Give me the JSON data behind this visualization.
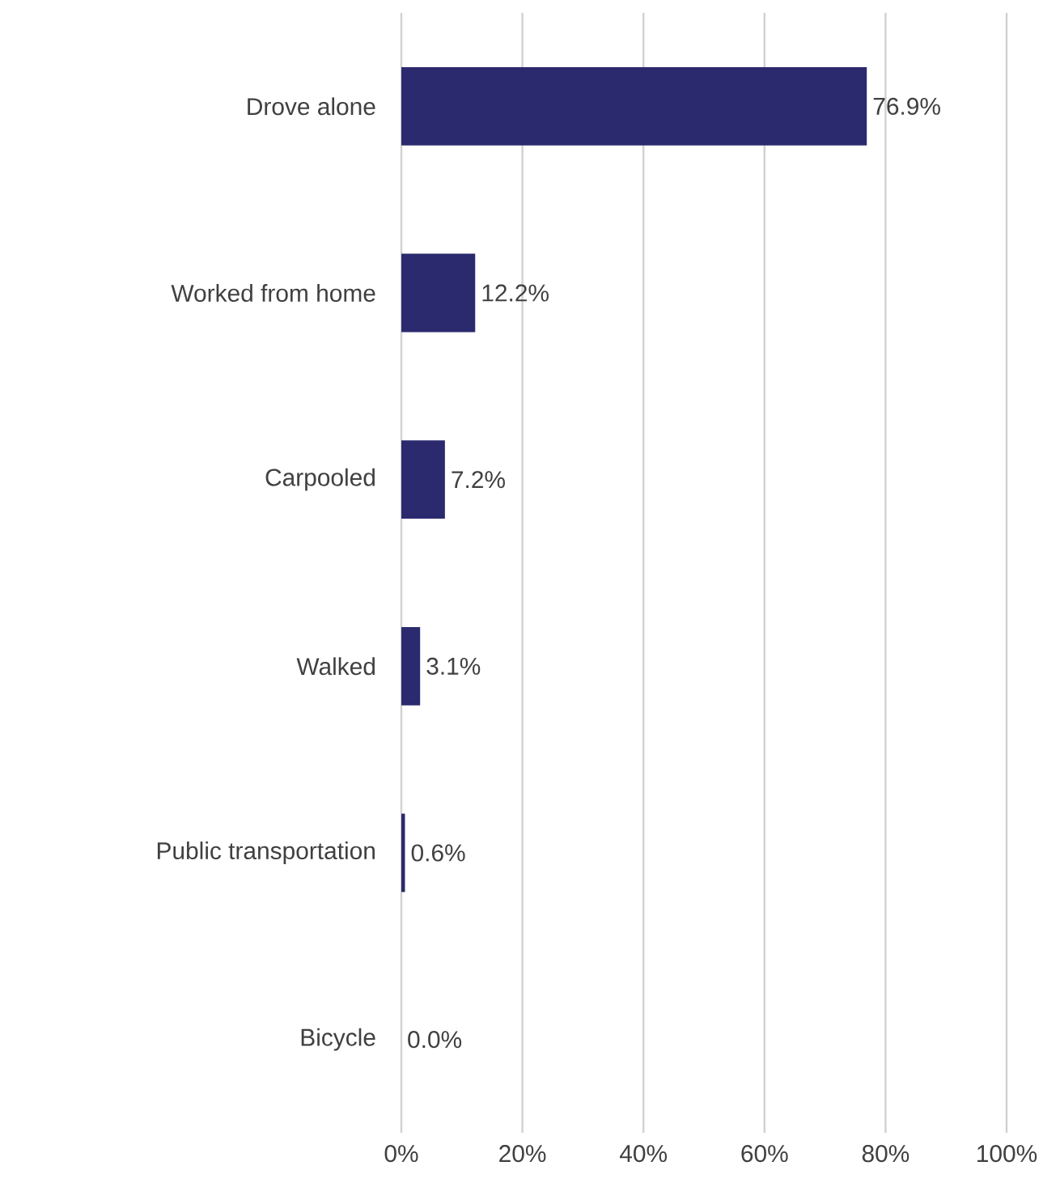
{
  "chart_data": {
    "type": "bar",
    "orientation": "horizontal",
    "categories": [
      "Drove alone",
      "Worked from home",
      "Carpooled",
      "Walked",
      "Public transportation",
      "Bicycle"
    ],
    "values": [
      76.9,
      12.2,
      7.2,
      3.1,
      0.6,
      0.0
    ],
    "value_labels": [
      "76.9%",
      "12.2%",
      "7.2%",
      "3.1%",
      "0.6%",
      "0.0%"
    ],
    "color": "#2b2a6e",
    "xlim": [
      0,
      100
    ],
    "xticks": [
      {
        "value": 0,
        "label": "0%"
      },
      {
        "value": 20,
        "label": "20%"
      },
      {
        "value": 40,
        "label": "40%"
      },
      {
        "value": 60,
        "label": "60%"
      },
      {
        "value": 80,
        "label": "80%"
      },
      {
        "value": 100,
        "label": "100%"
      }
    ],
    "grid": "x"
  }
}
